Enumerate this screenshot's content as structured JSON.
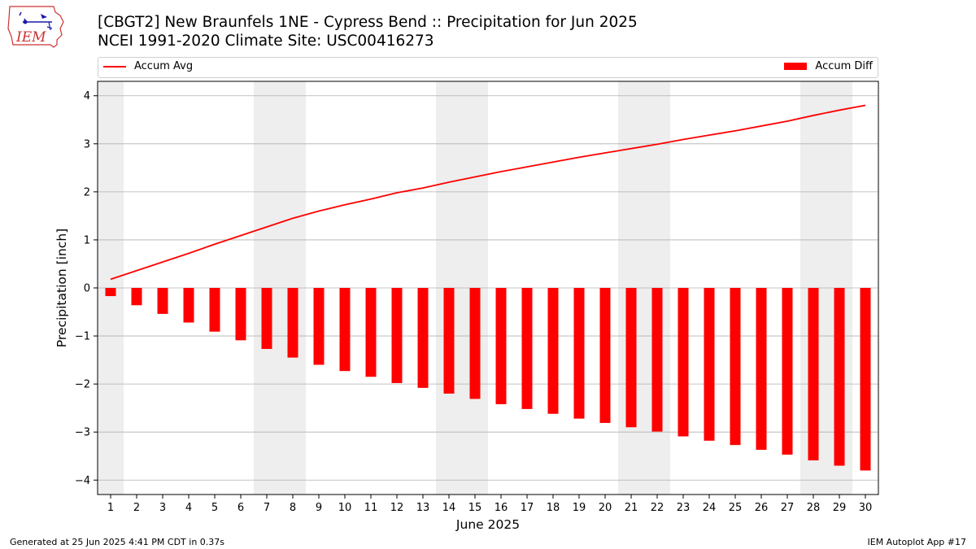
{
  "header": {
    "title_line1": "[CBGT2] New Braunfels 1NE - Cypress Bend :: Precipitation for Jun 2025",
    "title_line2": "NCEI 1991-2020 Climate Site: USC00416273"
  },
  "logo": {
    "text": "IEM",
    "color": "#cc3333"
  },
  "footer": {
    "left": "Generated at 25 Jun 2025 4:41 PM CDT in 0.37s",
    "right": "IEM Autoplot App #17"
  },
  "chart_data": {
    "type": "bar",
    "xlabel": "June 2025",
    "ylabel": "Precipitation [inch]",
    "ylim": [
      -4.3,
      4.3
    ],
    "yticks": [
      -4,
      -3,
      -2,
      -1,
      0,
      1,
      2,
      3,
      4
    ],
    "grid": "horizontal",
    "legend_placement": "top",
    "weekend_shading_days": [
      1,
      7,
      8,
      14,
      15,
      21,
      22,
      28,
      29
    ],
    "colors": {
      "series": "#ff0000",
      "weekend": "#eeeeee",
      "grid": "#b0b0b0"
    },
    "categories": [
      "1",
      "2",
      "3",
      "4",
      "5",
      "6",
      "7",
      "8",
      "9",
      "10",
      "11",
      "12",
      "13",
      "14",
      "15",
      "16",
      "17",
      "18",
      "19",
      "20",
      "21",
      "22",
      "23",
      "24",
      "25",
      "26",
      "27",
      "28",
      "29",
      "30"
    ],
    "series": [
      {
        "name": "Accum Avg",
        "kind": "line",
        "values": [
          0.18,
          0.36,
          0.54,
          0.72,
          0.91,
          1.09,
          1.27,
          1.45,
          1.6,
          1.73,
          1.85,
          1.98,
          2.08,
          2.2,
          2.31,
          2.42,
          2.52,
          2.62,
          2.72,
          2.81,
          2.9,
          2.99,
          3.09,
          3.18,
          3.27,
          3.37,
          3.47,
          3.59,
          3.7,
          3.8
        ]
      },
      {
        "name": "Accum Diff",
        "kind": "bar",
        "values": [
          -0.17,
          -0.36,
          -0.54,
          -0.72,
          -0.91,
          -1.09,
          -1.27,
          -1.45,
          -1.6,
          -1.73,
          -1.85,
          -1.98,
          -2.08,
          -2.2,
          -2.31,
          -2.42,
          -2.52,
          -2.62,
          -2.72,
          -2.81,
          -2.9,
          -2.99,
          -3.09,
          -3.18,
          -3.27,
          -3.37,
          -3.47,
          -3.59,
          -3.7,
          -3.8
        ]
      }
    ]
  }
}
